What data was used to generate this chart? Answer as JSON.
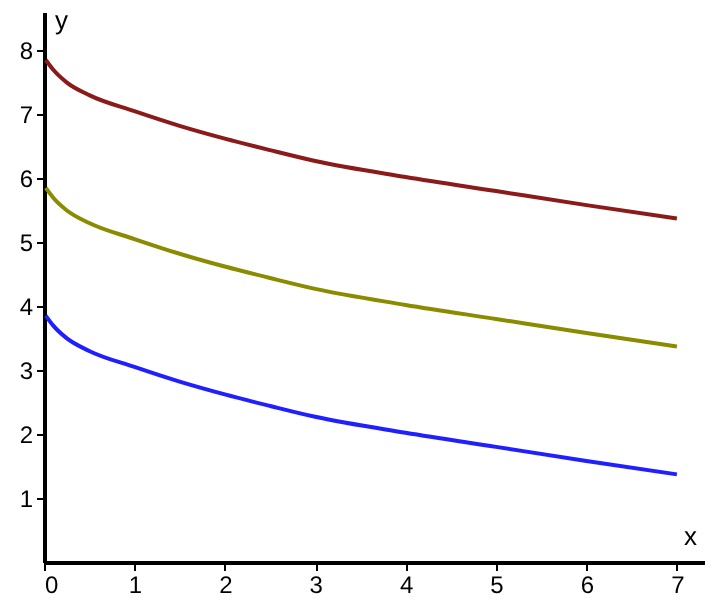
{
  "chart_data": {
    "type": "line",
    "xlabel": "x",
    "ylabel": "y",
    "xlim": [
      0,
      7.3
    ],
    "ylim": [
      0,
      8.6
    ],
    "xticks": [
      0,
      1,
      2,
      3,
      4,
      5,
      6,
      7
    ],
    "yticks": [
      1,
      2,
      3,
      4,
      5,
      6,
      7,
      8
    ],
    "grid": false,
    "marker": "none",
    "line_style": "solid",
    "series": [
      {
        "color": "#8b1a1a",
        "x": [
          0.02,
          0.1,
          0.25,
          0.5,
          1,
          1.5,
          2,
          2.5,
          3,
          4,
          5,
          6,
          7
        ],
        "values": [
          7.85,
          7.7,
          7.5,
          7.3,
          7.05,
          6.82,
          6.62,
          6.44,
          6.27,
          6.02,
          5.8,
          5.58,
          5.37
        ]
      },
      {
        "color": "#8b8b00",
        "x": [
          0.02,
          0.1,
          0.25,
          0.5,
          1,
          1.5,
          2,
          2.5,
          3,
          4,
          5,
          6,
          7
        ],
        "values": [
          5.85,
          5.7,
          5.5,
          5.3,
          5.05,
          4.82,
          4.62,
          4.44,
          4.27,
          4.02,
          3.8,
          3.58,
          3.37
        ]
      },
      {
        "color": "#1f1fff",
        "x": [
          0.02,
          0.1,
          0.25,
          0.5,
          1,
          1.5,
          2,
          2.5,
          3,
          4,
          5,
          6,
          7
        ],
        "values": [
          3.85,
          3.7,
          3.5,
          3.3,
          3.05,
          2.82,
          2.62,
          2.44,
          2.27,
          2.02,
          1.8,
          1.58,
          1.37
        ]
      }
    ]
  }
}
